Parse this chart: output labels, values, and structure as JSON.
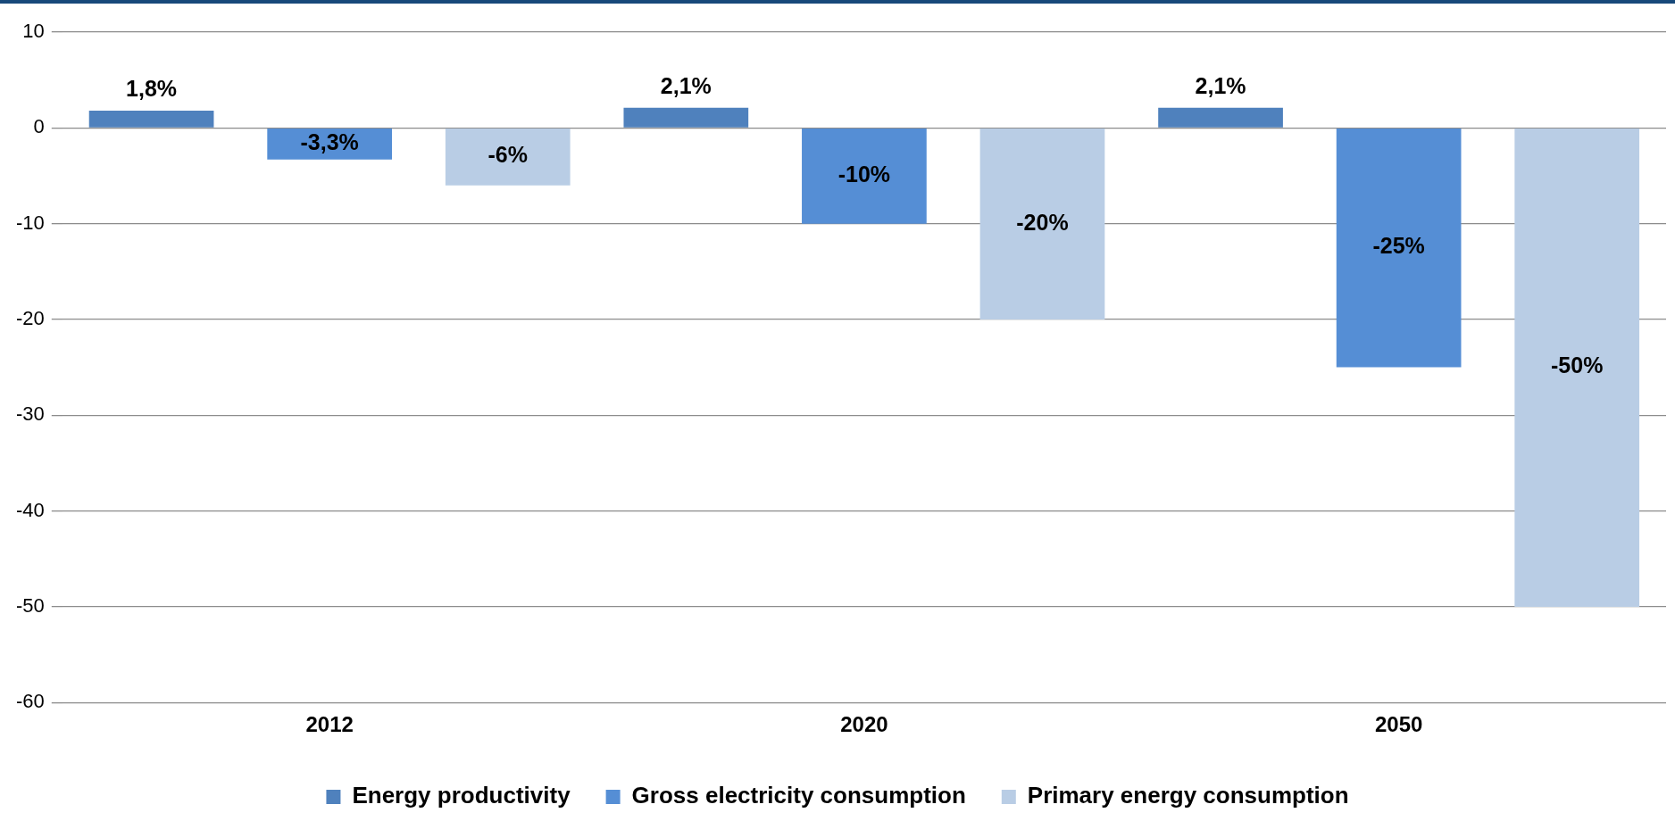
{
  "chart_data": {
    "type": "bar",
    "categories": [
      "2012",
      "2020",
      "2050"
    ],
    "series": [
      {
        "name": "Energy productivity",
        "color": "#4f81bd",
        "values": [
          1.8,
          2.1,
          2.1
        ],
        "value_labels": [
          "1,8%",
          "2,1%",
          "2,1%"
        ]
      },
      {
        "name": "Gross electricity consumption",
        "color": "#558ed5",
        "values": [
          -3.3,
          -10,
          -25
        ],
        "value_labels": [
          "-3,3%",
          "-10%",
          "-25%"
        ]
      },
      {
        "name": "Primary energy consumption",
        "color": "#b9cde5",
        "values": [
          -6,
          -20,
          -50
        ],
        "value_labels": [
          "-6%",
          "-20%",
          "-50%"
        ]
      }
    ],
    "ylim": [
      -60,
      10
    ],
    "yticks": [
      -60,
      -50,
      -40,
      -30,
      -20,
      -10,
      0,
      10
    ],
    "grid": "y",
    "legend": "bottom"
  }
}
